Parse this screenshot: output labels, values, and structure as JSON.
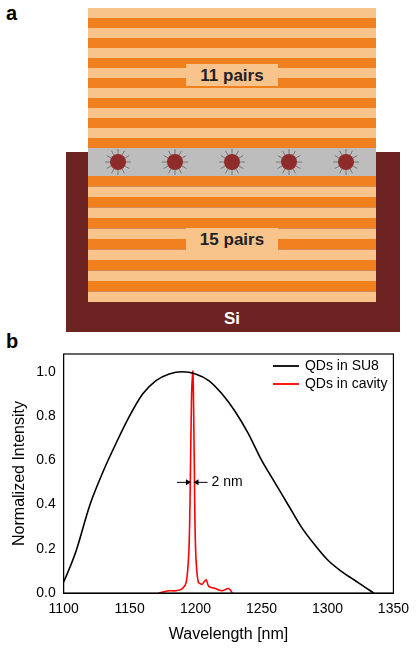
{
  "diagram": {
    "panel": "a",
    "top_mirror": "11 pairs",
    "bottom_mirror": "15 pairs",
    "substrate": "Si"
  },
  "chart_data": {
    "panel": "b",
    "type": "line",
    "x_label": "Wavelength [nm]",
    "y_label": "Normalized Intensity",
    "xlim": [
      1100,
      1350
    ],
    "xticks": [
      1100,
      1150,
      1200,
      1250,
      1300,
      1350
    ],
    "ylim": [
      0,
      1.08
    ],
    "yticks": [
      {
        "value": 0,
        "label": "0.0"
      },
      {
        "value": 0.2,
        "label": "0.2"
      },
      {
        "value": 0.4,
        "label": "0.4"
      },
      {
        "value": 0.6,
        "label": "0.6"
      },
      {
        "value": 0.8,
        "label": "0.8"
      },
      {
        "value": 1,
        "label": "1.0"
      }
    ],
    "grid": false,
    "legend": "upper right",
    "series": [
      {
        "name": "QDs in SU8",
        "color": "#000000",
        "x": [
          1100,
          1105,
          1110,
          1120,
          1130,
          1140,
          1150,
          1160,
          1170,
          1180,
          1190,
          1200,
          1210,
          1220,
          1230,
          1240,
          1250,
          1260,
          1270,
          1280,
          1290,
          1300,
          1310,
          1320,
          1330,
          1335
        ],
        "values": [
          0.05,
          0.12,
          0.2,
          0.4,
          0.55,
          0.68,
          0.8,
          0.9,
          0.96,
          0.99,
          1.0,
          0.99,
          0.96,
          0.9,
          0.82,
          0.72,
          0.6,
          0.5,
          0.4,
          0.3,
          0.22,
          0.15,
          0.1,
          0.06,
          0.02,
          0.0
        ]
      },
      {
        "name": "QDs in cavity",
        "color": "#ff0000",
        "x": [
          1172,
          1180,
          1185,
          1190,
          1193,
          1195,
          1196,
          1197,
          1198,
          1199,
          1200,
          1202,
          1205,
          1208,
          1210,
          1215,
          1220,
          1225,
          1228
        ],
        "values": [
          0.0,
          0.01,
          0.01,
          0.02,
          0.05,
          0.2,
          0.5,
          0.9,
          1.0,
          0.6,
          0.2,
          0.05,
          0.04,
          0.06,
          0.03,
          0.02,
          0.01,
          0.02,
          0.0
        ]
      }
    ],
    "annotations": [
      {
        "text": "2 nm",
        "x": [
          1196.5,
          1198.5
        ],
        "y": 0.5
      }
    ]
  }
}
